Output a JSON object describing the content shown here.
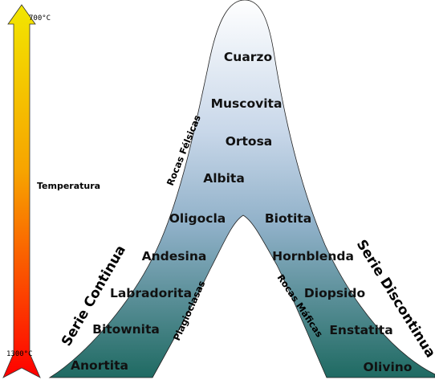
{
  "temperature": {
    "title": "Temperatura",
    "top_value": "700°C",
    "bottom_value": "1300°C"
  },
  "continuous_series": {
    "title": "Serie Continua",
    "group_label": "Plagioclasas",
    "minerals": [
      "Anortita",
      "Bitownita",
      "Labradorita",
      "Andesina",
      "Oligocla"
    ]
  },
  "discontinuous_series": {
    "title": "Serie Discontinua",
    "group_label": "Rocas Máficas",
    "minerals": [
      "Olivino",
      "Enstatita",
      "Diopsido",
      "Hornblenda",
      "Biotita"
    ]
  },
  "felsic_branch": {
    "group_label": "Rocas Félsicas",
    "minerals": [
      "Albita",
      "Ortosa",
      "Muscovita",
      "Cuarzo"
    ]
  },
  "colors": {
    "arrow_top": "#f2e600",
    "arrow_bottom": "#ff0000",
    "shape_top": "#ffffff",
    "shape_bottom": "#1f6a62"
  }
}
